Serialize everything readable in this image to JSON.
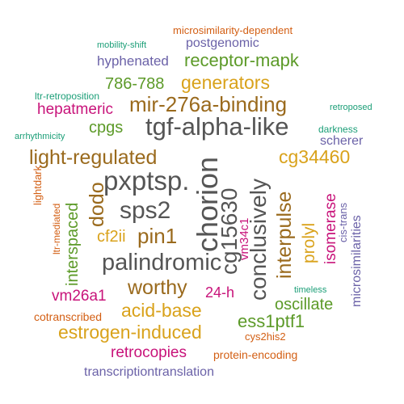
{
  "palette": {
    "gray": "#555555",
    "brown": "#9a6a1d",
    "gold": "#d9a21b",
    "green": "#5c9a28",
    "magenta": "#c8137a",
    "purple": "#6b62a8",
    "orange": "#d35f14",
    "teal": "#1b9e77"
  },
  "words": [
    {
      "text": "microsimilarity-dependent",
      "color": "orange"
    },
    {
      "text": "mobility-shift",
      "color": "teal"
    },
    {
      "text": "postgenomic",
      "color": "purple"
    },
    {
      "text": "hyphenated",
      "color": "purple"
    },
    {
      "text": "receptor-mapk",
      "color": "green"
    },
    {
      "text": "786-788",
      "color": "green"
    },
    {
      "text": "generators",
      "color": "gold"
    },
    {
      "text": "ltr-retroposition",
      "color": "teal"
    },
    {
      "text": "mir-276a-binding",
      "color": "brown"
    },
    {
      "text": "retroposed",
      "color": "teal"
    },
    {
      "text": "hepatmeric",
      "color": "magenta"
    },
    {
      "text": "cpgs",
      "color": "green"
    },
    {
      "text": "tgf-alpha-like",
      "color": "gray"
    },
    {
      "text": "arrhythmicity",
      "color": "teal"
    },
    {
      "text": "darkness",
      "color": "teal"
    },
    {
      "text": "scherer",
      "color": "purple"
    },
    {
      "text": "light-regulated",
      "color": "brown"
    },
    {
      "text": "cg34460",
      "color": "gold"
    },
    {
      "text": "pxptsp.",
      "color": "gray"
    },
    {
      "text": "chorion",
      "color": "gray"
    },
    {
      "text": "cg15630",
      "color": "gray"
    },
    {
      "text": "conclusively",
      "color": "gray"
    },
    {
      "text": "interpulse",
      "color": "brown"
    },
    {
      "text": "dodo",
      "color": "brown"
    },
    {
      "text": "interspaced",
      "color": "green"
    },
    {
      "text": "lightdark",
      "color": "orange"
    },
    {
      "text": "ltr-mediated",
      "color": "orange"
    },
    {
      "text": "sps2",
      "color": "gray"
    },
    {
      "text": "prolyl",
      "color": "gold"
    },
    {
      "text": "isomerase",
      "color": "magenta"
    },
    {
      "text": "cis-trans",
      "color": "purple"
    },
    {
      "text": "microsimilarities",
      "color": "purple"
    },
    {
      "text": "vm34c1",
      "color": "magenta"
    },
    {
      "text": "cf2ii",
      "color": "gold"
    },
    {
      "text": "pin1",
      "color": "brown"
    },
    {
      "text": "palindromic",
      "color": "gray"
    },
    {
      "text": "worthy",
      "color": "brown"
    },
    {
      "text": "24-h",
      "color": "magenta"
    },
    {
      "text": "timeless",
      "color": "teal"
    },
    {
      "text": "vm26a1",
      "color": "magenta"
    },
    {
      "text": "acid-base",
      "color": "gold"
    },
    {
      "text": "oscillate",
      "color": "green"
    },
    {
      "text": "cotranscribed",
      "color": "orange"
    },
    {
      "text": "ess1ptf1",
      "color": "green"
    },
    {
      "text": "estrogen-induced",
      "color": "gold"
    },
    {
      "text": "cys2his2",
      "color": "orange"
    },
    {
      "text": "retrocopies",
      "color": "magenta"
    },
    {
      "text": "protein-encoding",
      "color": "orange"
    },
    {
      "text": "transcriptiontranslation",
      "color": "purple"
    }
  ]
}
